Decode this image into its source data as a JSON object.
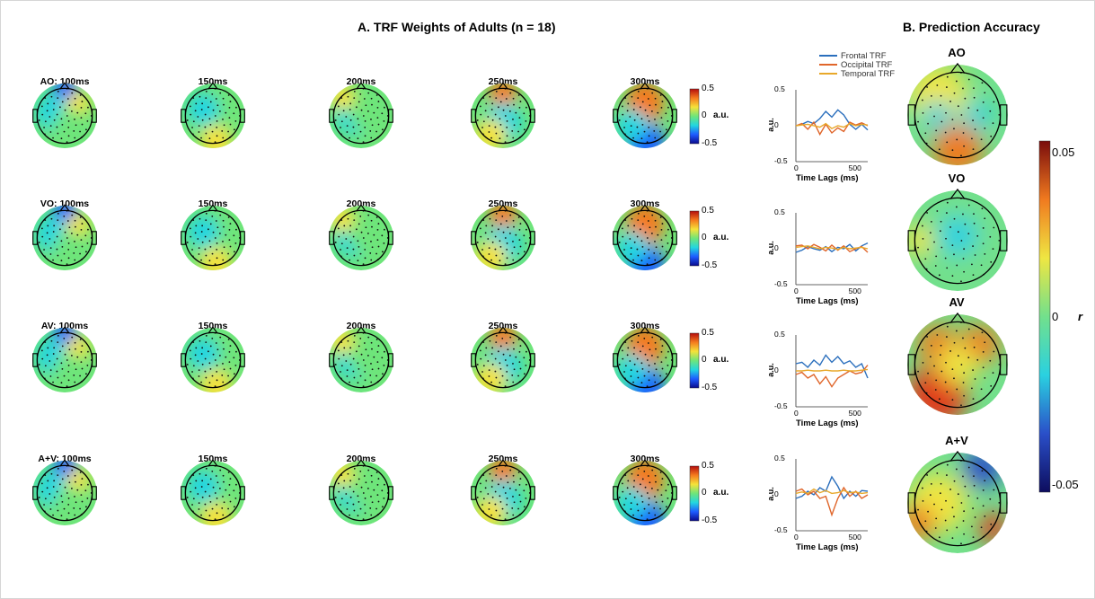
{
  "panel_a": {
    "title": "A.    TRF Weights of Adults (n = 18)"
  },
  "panel_b": {
    "title": "B.    Prediction Accuracy"
  },
  "topo_rows": [
    {
      "label": "AO: 100ms",
      "times": [
        "150ms",
        "200ms",
        "250ms",
        "300ms"
      ]
    },
    {
      "label": "VO: 100ms",
      "times": [
        "150ms",
        "200ms",
        "250ms",
        "300ms"
      ]
    },
    {
      "label": "AV: 100ms",
      "times": [
        "150ms",
        "200ms",
        "250ms",
        "300ms"
      ]
    },
    {
      "label": "A+V: 100ms",
      "times": [
        "150ms",
        "200ms",
        "250ms",
        "300ms"
      ]
    }
  ],
  "trf_colorbar": {
    "max": "0.5",
    "mid": "0",
    "min": "-0.5",
    "unit": "a.u."
  },
  "accuracy_colorbar": {
    "max": "0.05",
    "mid": "0",
    "min": "-0.05",
    "unit": "r"
  },
  "accuracy_conditions": [
    "AO",
    "VO",
    "AV",
    "A+V"
  ],
  "legend": {
    "items": [
      {
        "label": "Frontal TRF",
        "color": "#2b6fbd"
      },
      {
        "label": "Occipital TRF",
        "color": "#e0662b"
      },
      {
        "label": "Temporal TRF",
        "color": "#e8a82a"
      }
    ]
  },
  "line_axes": {
    "ylabel": "a.u.",
    "xlabel": "Time Lags (ms)",
    "yticks": [
      "0.5",
      "0",
      "-0.5"
    ],
    "xticks": [
      "0",
      "500"
    ]
  },
  "colors": {
    "trf_scale": [
      "#0a0a8c",
      "#1e5bff",
      "#22d6e0",
      "#6ee57a",
      "#f5e23a",
      "#f57b1e",
      "#b40d0d"
    ],
    "r_scale": [
      "#0d0d5e",
      "#2a4fc9",
      "#2ad1e0",
      "#72e08c",
      "#efe642",
      "#f07a1f",
      "#7a0c0c"
    ]
  },
  "chart_data": [
    {
      "type": "line",
      "panel": "AO",
      "x": [
        0,
        50,
        100,
        150,
        200,
        250,
        300,
        350,
        400,
        450,
        500,
        550,
        600
      ],
      "ylim": [
        -0.5,
        0.5
      ],
      "xlim": [
        0,
        600
      ],
      "series": [
        {
          "name": "Frontal TRF",
          "values": [
            0,
            0.02,
            0.06,
            0.03,
            0.1,
            0.2,
            0.12,
            0.22,
            0.15,
            0.02,
            -0.05,
            0.02,
            -0.06
          ]
        },
        {
          "name": "Occipital TRF",
          "values": [
            0,
            0.03,
            -0.05,
            0.05,
            -0.12,
            0.02,
            -0.1,
            -0.03,
            -0.08,
            0.05,
            0.01,
            0.04,
            0.0
          ]
        },
        {
          "name": "Temporal TRF",
          "values": [
            0,
            0.01,
            0.02,
            0.0,
            -0.02,
            0.03,
            -0.04,
            0.0,
            -0.02,
            0.03,
            0.0,
            0.02,
            0.01
          ]
        }
      ]
    },
    {
      "type": "line",
      "panel": "VO",
      "x": [
        0,
        50,
        100,
        150,
        200,
        250,
        300,
        350,
        400,
        450,
        500,
        550,
        600
      ],
      "ylim": [
        -0.5,
        0.5
      ],
      "xlim": [
        0,
        600
      ],
      "series": [
        {
          "name": "Frontal TRF",
          "values": [
            -0.05,
            -0.02,
            0.03,
            0.0,
            -0.02,
            0.03,
            -0.04,
            0.02,
            0.0,
            0.06,
            -0.03,
            0.04,
            0.08
          ]
        },
        {
          "name": "Occipital TRF",
          "values": [
            0.04,
            0.05,
            0.0,
            0.06,
            0.02,
            -0.03,
            0.05,
            -0.02,
            0.04,
            -0.04,
            0.0,
            0.03,
            -0.05
          ]
        },
        {
          "name": "Temporal TRF",
          "values": [
            0.02,
            0.03,
            0.04,
            0.02,
            0.0,
            0.02,
            0.01,
            -0.01,
            0.02,
            0.0,
            0.01,
            0.02,
            0.0
          ]
        }
      ]
    },
    {
      "type": "line",
      "panel": "AV",
      "x": [
        0,
        50,
        100,
        150,
        200,
        250,
        300,
        350,
        400,
        450,
        500,
        550,
        600
      ],
      "ylim": [
        -0.5,
        0.5
      ],
      "xlim": [
        0,
        600
      ],
      "series": [
        {
          "name": "Frontal TRF",
          "values": [
            0.1,
            0.12,
            0.05,
            0.15,
            0.08,
            0.22,
            0.12,
            0.2,
            0.1,
            0.14,
            0.05,
            0.1,
            -0.1
          ]
        },
        {
          "name": "Occipital TRF",
          "values": [
            -0.05,
            -0.02,
            -0.1,
            -0.05,
            -0.18,
            -0.08,
            -0.22,
            -0.1,
            -0.05,
            0.0,
            -0.04,
            -0.02,
            0.08
          ]
        },
        {
          "name": "Temporal TRF",
          "values": [
            0.0,
            0.0,
            0.01,
            0.0,
            0.0,
            0.01,
            0.0,
            0.0,
            0.01,
            0.0,
            0.0,
            0.01,
            0.02
          ]
        }
      ]
    },
    {
      "type": "line",
      "panel": "A+V",
      "x": [
        0,
        50,
        100,
        150,
        200,
        250,
        300,
        350,
        400,
        450,
        500,
        550,
        600
      ],
      "ylim": [
        -0.5,
        0.5
      ],
      "xlim": [
        0,
        600
      ],
      "series": [
        {
          "name": "Frontal TRF",
          "values": [
            -0.05,
            -0.02,
            0.05,
            0.0,
            0.1,
            0.05,
            0.25,
            0.12,
            -0.05,
            0.05,
            -0.02,
            0.06,
            0.05
          ]
        },
        {
          "name": "Occipital TRF",
          "values": [
            0.05,
            0.08,
            0.0,
            0.05,
            -0.05,
            -0.02,
            -0.28,
            -0.05,
            0.1,
            -0.02,
            0.05,
            -0.05,
            0.0
          ]
        },
        {
          "name": "Temporal TRF",
          "values": [
            0.02,
            0.04,
            0.02,
            0.08,
            0.03,
            0.06,
            0.02,
            0.03,
            0.06,
            0.03,
            0.04,
            0.02,
            0.03
          ]
        }
      ]
    }
  ]
}
